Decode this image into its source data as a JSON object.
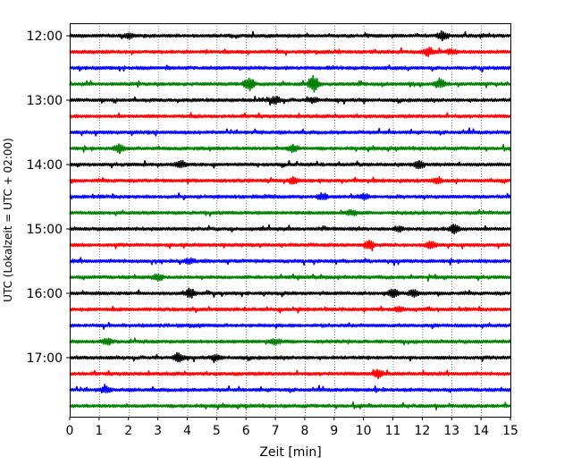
{
  "chart_data": {
    "type": "line",
    "xlabel": "Zeit  [min]",
    "ylabel": "UTC (Lokalzeit = UTC + 02:00)",
    "xlim": [
      0,
      15
    ],
    "x_ticks": [
      "0",
      "1",
      "2",
      "3",
      "4",
      "5",
      "6",
      "7",
      "8",
      "9",
      "10",
      "11",
      "12",
      "13",
      "14",
      "15"
    ],
    "y_ticks": [
      "12:00",
      "13:00",
      "14:00",
      "15:00",
      "16:00",
      "17:00"
    ],
    "grid": "vertical dotted",
    "trace_minutes_per_line": 15,
    "color_cycle": [
      "#000000",
      "#ff0000",
      "#0000ff",
      "#008000"
    ],
    "traces": [
      {
        "start": "12:00",
        "color": "#000000"
      },
      {
        "start": "12:15",
        "color": "#ff0000"
      },
      {
        "start": "12:30",
        "color": "#0000ff"
      },
      {
        "start": "12:45",
        "color": "#008000"
      },
      {
        "start": "13:00",
        "color": "#000000"
      },
      {
        "start": "13:15",
        "color": "#ff0000"
      },
      {
        "start": "13:30",
        "color": "#0000ff"
      },
      {
        "start": "13:45",
        "color": "#008000"
      },
      {
        "start": "14:00",
        "color": "#000000"
      },
      {
        "start": "14:15",
        "color": "#ff0000"
      },
      {
        "start": "14:30",
        "color": "#0000ff"
      },
      {
        "start": "14:45",
        "color": "#008000"
      },
      {
        "start": "15:00",
        "color": "#000000"
      },
      {
        "start": "15:15",
        "color": "#ff0000"
      },
      {
        "start": "15:30",
        "color": "#0000ff"
      },
      {
        "start": "15:45",
        "color": "#008000"
      },
      {
        "start": "16:00",
        "color": "#000000"
      },
      {
        "start": "16:15",
        "color": "#ff0000"
      },
      {
        "start": "16:30",
        "color": "#0000ff"
      },
      {
        "start": "16:45",
        "color": "#008000"
      },
      {
        "start": "17:00",
        "color": "#000000"
      },
      {
        "start": "17:15",
        "color": "#ff0000"
      },
      {
        "start": "17:30",
        "color": "#0000ff"
      },
      {
        "start": "17:45",
        "color": "#008000"
      }
    ],
    "events": [
      {
        "trace": 0,
        "x": 12.7,
        "amp": 1.0
      },
      {
        "trace": 0,
        "x": 2.0,
        "amp": 0.5
      },
      {
        "trace": 1,
        "x": 12.2,
        "amp": 0.7
      },
      {
        "trace": 1,
        "x": 13.0,
        "amp": 0.5
      },
      {
        "trace": 3,
        "x": 6.1,
        "amp": 1.4
      },
      {
        "trace": 3,
        "x": 8.3,
        "amp": 1.8
      },
      {
        "trace": 3,
        "x": 12.6,
        "amp": 1.0
      },
      {
        "trace": 4,
        "x": 7.0,
        "amp": 0.8
      },
      {
        "trace": 4,
        "x": 8.3,
        "amp": 0.6
      },
      {
        "trace": 7,
        "x": 1.7,
        "amp": 0.8
      },
      {
        "trace": 7,
        "x": 7.6,
        "amp": 0.7
      },
      {
        "trace": 8,
        "x": 3.8,
        "amp": 0.7
      },
      {
        "trace": 8,
        "x": 11.9,
        "amp": 0.8
      },
      {
        "trace": 9,
        "x": 7.6,
        "amp": 0.6
      },
      {
        "trace": 9,
        "x": 12.5,
        "amp": 0.5
      },
      {
        "trace": 10,
        "x": 8.6,
        "amp": 0.7
      },
      {
        "trace": 10,
        "x": 10.0,
        "amp": 0.5
      },
      {
        "trace": 11,
        "x": 9.6,
        "amp": 0.5
      },
      {
        "trace": 12,
        "x": 13.1,
        "amp": 1.0
      },
      {
        "trace": 12,
        "x": 11.2,
        "amp": 0.5
      },
      {
        "trace": 13,
        "x": 10.2,
        "amp": 1.0
      },
      {
        "trace": 13,
        "x": 12.3,
        "amp": 0.7
      },
      {
        "trace": 14,
        "x": 4.1,
        "amp": 0.5
      },
      {
        "trace": 15,
        "x": 3.0,
        "amp": 0.7
      },
      {
        "trace": 16,
        "x": 4.1,
        "amp": 1.0
      },
      {
        "trace": 16,
        "x": 11.0,
        "amp": 1.0
      },
      {
        "trace": 16,
        "x": 11.7,
        "amp": 0.7
      },
      {
        "trace": 17,
        "x": 11.2,
        "amp": 0.5
      },
      {
        "trace": 19,
        "x": 1.3,
        "amp": 0.7
      },
      {
        "trace": 19,
        "x": 7.0,
        "amp": 0.5
      },
      {
        "trace": 20,
        "x": 3.7,
        "amp": 0.9
      },
      {
        "trace": 20,
        "x": 5.0,
        "amp": 0.5
      },
      {
        "trace": 21,
        "x": 10.5,
        "amp": 0.8
      },
      {
        "trace": 22,
        "x": 1.2,
        "amp": 0.6
      }
    ]
  }
}
